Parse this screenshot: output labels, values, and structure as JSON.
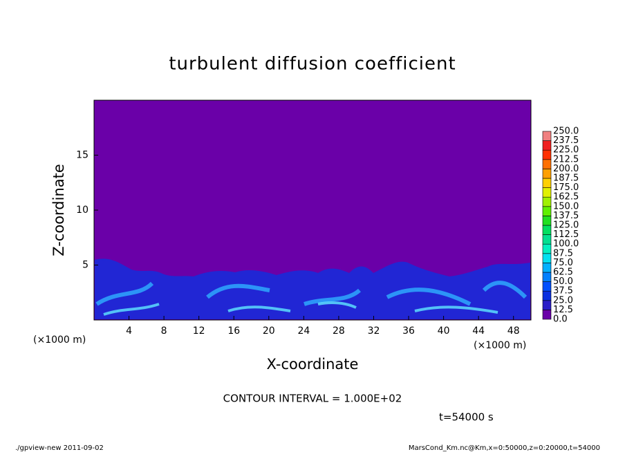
{
  "chart_data": {
    "type": "contour",
    "title": "turbulent diffusion coefficient",
    "xlabel": "X-coordinate",
    "ylabel": "Z-coordinate",
    "x_unit": "(×1000 m)",
    "xlim": [
      0,
      50
    ],
    "xticks": [
      4,
      8,
      12,
      16,
      20,
      24,
      28,
      32,
      36,
      40,
      44,
      48
    ],
    "ylim": [
      0,
      20
    ],
    "yticks": [
      5,
      10,
      15
    ],
    "contour_interval": "CONTOUR INTERVAL = 1.000E+02",
    "time": "t=54000 s",
    "colorbar": {
      "levels": [
        {
          "value": 0,
          "label": "0.0"
        },
        {
          "value": 12.5,
          "label": "12.5"
        },
        {
          "value": 25,
          "label": "25.0"
        },
        {
          "value": 37.5,
          "label": "37.5"
        },
        {
          "value": 50,
          "label": "50.0"
        },
        {
          "value": 62.5,
          "label": "62.5"
        },
        {
          "value": 75,
          "label": "75.0"
        },
        {
          "value": 87.5,
          "label": "87.5"
        },
        {
          "value": 100,
          "label": "100.0"
        },
        {
          "value": 112.5,
          "label": "112.5"
        },
        {
          "value": 125,
          "label": "125.0"
        },
        {
          "value": 137.5,
          "label": "137.5"
        },
        {
          "value": 150,
          "label": "150.0"
        },
        {
          "value": 162.5,
          "label": "162.5"
        },
        {
          "value": 175,
          "label": "175.0"
        },
        {
          "value": 187.5,
          "label": "187.5"
        },
        {
          "value": 200,
          "label": "200.0"
        },
        {
          "value": 212.5,
          "label": "212.5"
        },
        {
          "value": 225,
          "label": "225.0"
        },
        {
          "value": 237.5,
          "label": "237.5"
        },
        {
          "value": 250,
          "label": "250.0"
        }
      ],
      "colors": [
        "#6a00a8",
        "#2a1ec8",
        "#0a30e0",
        "#0050ff",
        "#0080ff",
        "#00b0ff",
        "#00e0f0",
        "#00f0c0",
        "#00e090",
        "#00e060",
        "#20e020",
        "#60f000",
        "#a0f000",
        "#e0f000",
        "#ffd000",
        "#ffa000",
        "#ff7000",
        "#ff3000",
        "#f02020",
        "#f08080"
      ]
    },
    "footer_left": "./gpview-new  2011-09-02",
    "footer_right": "MarsCond_Km.nc@Km,x=0:50000,z=0:20000,t=54000"
  }
}
